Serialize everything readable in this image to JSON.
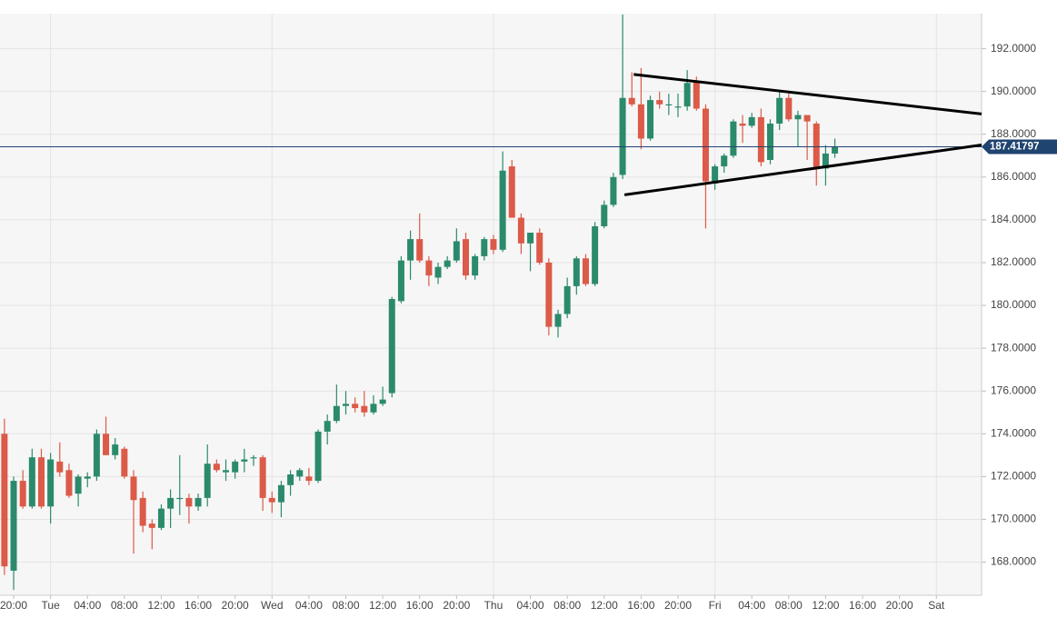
{
  "chart_data": {
    "type": "candlestick",
    "x": [
      -1,
      0,
      1,
      2,
      3,
      4,
      5,
      6,
      7,
      8,
      9,
      10,
      11,
      12,
      13,
      14,
      15,
      16,
      17,
      18,
      19,
      20,
      21,
      22,
      23,
      24,
      25,
      26,
      27,
      28,
      29,
      30,
      31,
      32,
      33,
      34,
      35,
      36,
      37,
      38,
      39,
      40,
      41,
      42,
      43,
      44,
      45,
      46,
      47,
      48,
      49,
      50,
      51,
      52,
      53,
      54,
      55,
      56,
      57,
      58,
      59,
      60,
      61,
      62,
      63,
      64,
      65,
      66,
      67,
      68,
      69,
      70,
      71,
      72,
      73,
      74,
      75,
      76,
      77,
      78,
      79,
      80,
      81,
      82,
      83,
      84,
      85,
      86,
      87,
      88,
      89
    ],
    "ohlc": [
      [
        174.0,
        174.7,
        167.4,
        167.8
      ],
      [
        167.6,
        172.0,
        166.7,
        171.8
      ],
      [
        171.8,
        172.3,
        170.5,
        170.6
      ],
      [
        170.6,
        173.3,
        170.5,
        172.9
      ],
      [
        172.9,
        173.3,
        170.5,
        170.6
      ],
      [
        170.6,
        173.1,
        169.8,
        172.8
      ],
      [
        172.7,
        173.6,
        172.0,
        172.2
      ],
      [
        172.3,
        172.6,
        171.0,
        171.1
      ],
      [
        171.2,
        172.1,
        170.6,
        172.0
      ],
      [
        171.9,
        172.2,
        171.5,
        172.0
      ],
      [
        172.0,
        174.2,
        171.8,
        174.0
      ],
      [
        174.0,
        174.8,
        173.0,
        173.0
      ],
      [
        173.0,
        173.8,
        172.8,
        173.5
      ],
      [
        173.3,
        173.4,
        171.9,
        172.0
      ],
      [
        172.0,
        172.3,
        168.4,
        170.9
      ],
      [
        171.0,
        171.3,
        169.4,
        169.7
      ],
      [
        169.8,
        170.0,
        168.6,
        169.6
      ],
      [
        169.6,
        170.7,
        169.5,
        170.5
      ],
      [
        170.5,
        171.4,
        169.6,
        171.0
      ],
      [
        171.0,
        173.0,
        170.2,
        171.0
      ],
      [
        171.0,
        171.2,
        169.8,
        170.6
      ],
      [
        170.6,
        171.2,
        170.4,
        171.0
      ],
      [
        171.0,
        173.5,
        170.6,
        172.6
      ],
      [
        172.6,
        172.8,
        172.2,
        172.3
      ],
      [
        172.2,
        172.8,
        171.8,
        172.3
      ],
      [
        172.2,
        172.8,
        171.9,
        172.7
      ],
      [
        172.7,
        173.3,
        172.2,
        172.8
      ],
      [
        172.9,
        173.0,
        172.5,
        172.9
      ],
      [
        172.9,
        173.0,
        170.4,
        171.0
      ],
      [
        171.0,
        171.3,
        170.3,
        170.8
      ],
      [
        170.8,
        171.8,
        170.1,
        171.6
      ],
      [
        171.6,
        172.3,
        171.1,
        172.1
      ],
      [
        172.0,
        172.4,
        171.8,
        172.3
      ],
      [
        172.0,
        172.4,
        171.6,
        171.8
      ],
      [
        171.8,
        174.2,
        171.7,
        174.1
      ],
      [
        174.1,
        174.9,
        173.5,
        174.6
      ],
      [
        174.6,
        176.3,
        174.5,
        175.3
      ],
      [
        175.3,
        176.0,
        174.9,
        175.4
      ],
      [
        175.4,
        175.7,
        175.0,
        175.2
      ],
      [
        175.3,
        176.0,
        174.8,
        175.0
      ],
      [
        175.0,
        175.8,
        174.9,
        175.4
      ],
      [
        175.4,
        176.2,
        175.3,
        175.6
      ],
      [
        175.9,
        180.4,
        175.7,
        180.3
      ],
      [
        180.2,
        182.3,
        180.1,
        182.1
      ],
      [
        182.1,
        183.5,
        181.2,
        183.1
      ],
      [
        183.1,
        184.3,
        182.0,
        182.1
      ],
      [
        182.1,
        182.3,
        180.9,
        181.4
      ],
      [
        181.3,
        182.0,
        181.0,
        181.8
      ],
      [
        181.8,
        182.3,
        181.7,
        182.1
      ],
      [
        182.1,
        183.6,
        182.0,
        183.0
      ],
      [
        183.1,
        183.4,
        181.2,
        181.4
      ],
      [
        181.4,
        182.4,
        181.2,
        182.3
      ],
      [
        182.3,
        183.2,
        182.1,
        183.1
      ],
      [
        183.1,
        183.3,
        182.4,
        182.6
      ],
      [
        182.6,
        187.2,
        182.5,
        186.3
      ],
      [
        186.5,
        186.8,
        184.1,
        184.1
      ],
      [
        184.1,
        184.3,
        182.4,
        182.9
      ],
      [
        182.9,
        183.4,
        181.6,
        183.4
      ],
      [
        183.4,
        183.6,
        181.9,
        182.0
      ],
      [
        182.0,
        182.2,
        178.6,
        179.0
      ],
      [
        179.0,
        179.8,
        178.5,
        179.6
      ],
      [
        179.6,
        181.3,
        179.4,
        180.9
      ],
      [
        180.9,
        182.3,
        180.5,
        182.2
      ],
      [
        182.2,
        182.4,
        180.9,
        181.0
      ],
      [
        181.0,
        183.9,
        180.9,
        183.7
      ],
      [
        183.7,
        184.9,
        183.6,
        184.7
      ],
      [
        184.7,
        186.2,
        184.6,
        186.0
      ],
      [
        186.1,
        193.6,
        185.9,
        189.7
      ],
      [
        189.7,
        190.9,
        189.3,
        189.4
      ],
      [
        189.4,
        191.1,
        187.3,
        187.8
      ],
      [
        187.8,
        189.8,
        187.7,
        189.6
      ],
      [
        189.6,
        190.0,
        189.2,
        189.4
      ],
      [
        189.4,
        189.9,
        188.9,
        189.4
      ],
      [
        189.3,
        189.9,
        188.8,
        189.3
      ],
      [
        189.3,
        191.0,
        189.1,
        190.4
      ],
      [
        190.5,
        190.7,
        189.1,
        189.2
      ],
      [
        189.2,
        189.4,
        183.6,
        185.8
      ],
      [
        185.7,
        186.6,
        185.4,
        186.5
      ],
      [
        186.5,
        187.1,
        186.2,
        187.0
      ],
      [
        187.0,
        188.7,
        186.9,
        188.6
      ],
      [
        188.5,
        188.9,
        187.6,
        188.4
      ],
      [
        188.4,
        189.0,
        188.3,
        188.8
      ],
      [
        188.8,
        189.2,
        186.5,
        186.7
      ],
      [
        186.8,
        188.7,
        186.6,
        188.5
      ],
      [
        188.5,
        190.0,
        188.2,
        189.7
      ],
      [
        189.7,
        189.9,
        188.6,
        188.7
      ],
      [
        188.7,
        189.1,
        187.4,
        188.9
      ],
      [
        188.9,
        188.9,
        186.8,
        188.6
      ],
      [
        188.5,
        188.6,
        185.6,
        186.4
      ],
      [
        186.4,
        187.5,
        185.6,
        187.1
      ],
      [
        187.1,
        187.8,
        186.9,
        187.4
      ]
    ],
    "up_color": "#2b8a6c",
    "down_color": "#dc5a48",
    "xlim": [
      -1.48,
      104.9
    ],
    "ylim": [
      166.45,
      193.64
    ],
    "xticks": [
      {
        "value": 0,
        "label": "20:00"
      },
      {
        "value": 4,
        "label": "Tue"
      },
      {
        "value": 8,
        "label": "04:00"
      },
      {
        "value": 12,
        "label": "08:00"
      },
      {
        "value": 16,
        "label": "12:00"
      },
      {
        "value": 20,
        "label": "16:00"
      },
      {
        "value": 24,
        "label": "20:00"
      },
      {
        "value": 28,
        "label": "Wed"
      },
      {
        "value": 32,
        "label": "04:00"
      },
      {
        "value": 36,
        "label": "08:00"
      },
      {
        "value": 40,
        "label": "12:00"
      },
      {
        "value": 44,
        "label": "16:00"
      },
      {
        "value": 48,
        "label": "20:00"
      },
      {
        "value": 52,
        "label": "Thu"
      },
      {
        "value": 56,
        "label": "04:00"
      },
      {
        "value": 60,
        "label": "08:00"
      },
      {
        "value": 64,
        "label": "12:00"
      },
      {
        "value": 68,
        "label": "16:00"
      },
      {
        "value": 72,
        "label": "20:00"
      },
      {
        "value": 76,
        "label": "Fri"
      },
      {
        "value": 80,
        "label": "04:00"
      },
      {
        "value": 84,
        "label": "08:00"
      },
      {
        "value": 88,
        "label": "12:00"
      },
      {
        "value": 92,
        "label": "16:00"
      },
      {
        "value": 96,
        "label": "20:00"
      },
      {
        "value": 100,
        "label": "Sat"
      }
    ],
    "yticks": [
      {
        "value": 168,
        "label": "168.0000"
      },
      {
        "value": 170,
        "label": "170.0000"
      },
      {
        "value": 172,
        "label": "172.0000"
      },
      {
        "value": 174,
        "label": "174.0000"
      },
      {
        "value": 176,
        "label": "176.0000"
      },
      {
        "value": 178,
        "label": "178.0000"
      },
      {
        "value": 180,
        "label": "180.0000"
      },
      {
        "value": 182,
        "label": "182.0000"
      },
      {
        "value": 184,
        "label": "184.0000"
      },
      {
        "value": 186,
        "label": "186.0000"
      },
      {
        "value": 188,
        "label": "188.0000"
      },
      {
        "value": 190,
        "label": "190.0000"
      },
      {
        "value": 192,
        "label": "192.0000"
      }
    ],
    "grid": true,
    "last_price": 187.41797,
    "last_price_color": "#1f4470",
    "trendlines": [
      {
        "x": [
          67.2,
          104.9
        ],
        "y": [
          190.8,
          188.95
        ]
      },
      {
        "x": [
          66.2,
          104.9
        ],
        "y": [
          185.17,
          187.5
        ]
      }
    ]
  }
}
